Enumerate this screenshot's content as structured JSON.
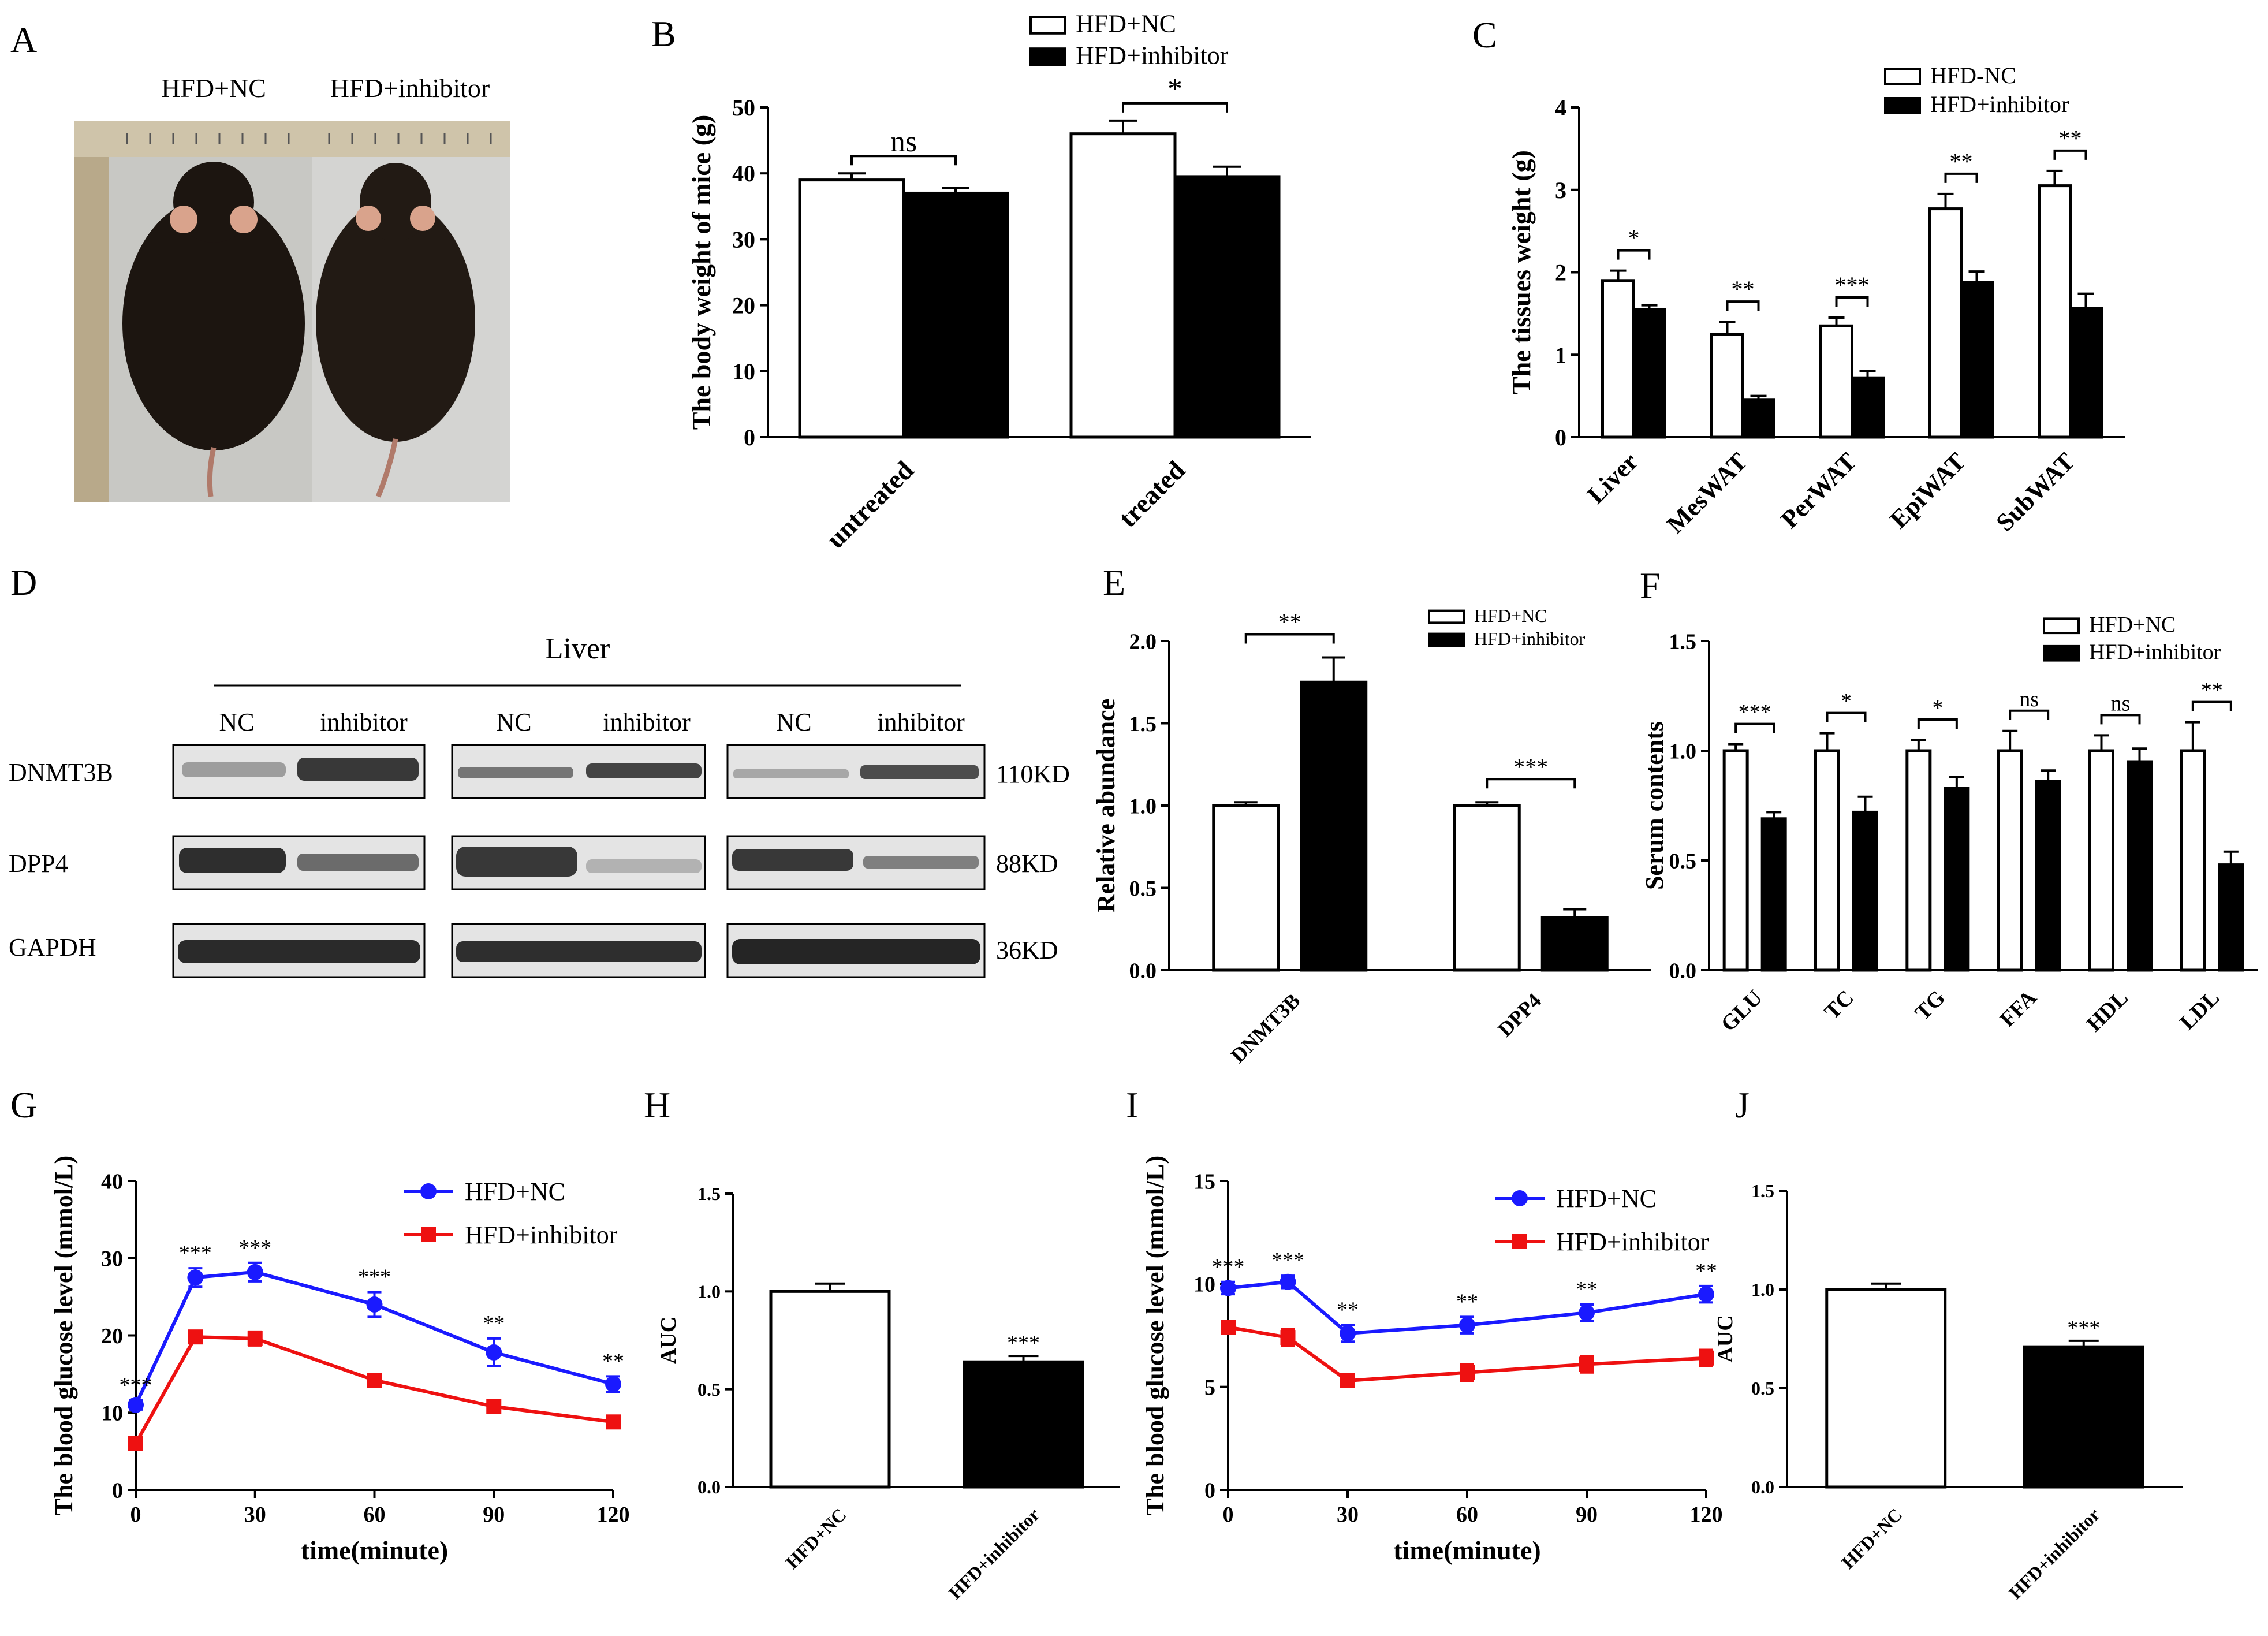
{
  "panel_letters": {
    "A": "A",
    "B": "B",
    "C": "C",
    "D": "D",
    "E": "E",
    "F": "F",
    "G": "G",
    "H": "H",
    "I": "I",
    "J": "J"
  },
  "photo": {
    "label_nc": "HFD+NC",
    "label_inhibitor": "HFD+inhibitor"
  },
  "western": {
    "title": "Liver",
    "lanes": [
      "NC",
      "inhibitor",
      "NC",
      "inhibitor",
      "NC",
      "inhibitor"
    ],
    "rows": [
      {
        "name": "DNMT3B",
        "kd": "110KD"
      },
      {
        "name": "DPP4",
        "kd": "88KD"
      },
      {
        "name": "GAPDH",
        "kd": "36KD"
      }
    ]
  },
  "chart_data": [
    {
      "panel": "B",
      "type": "bar",
      "categories": [
        "untreated",
        "treated"
      ],
      "series": [
        {
          "name": "HFD+NC",
          "values": [
            39,
            46
          ],
          "errors": [
            1,
            2
          ]
        },
        {
          "name": "HFD+inhibitor",
          "values": [
            37,
            39.5
          ],
          "errors": [
            0.8,
            1.5
          ]
        }
      ],
      "significance": [
        "ns",
        "*"
      ],
      "ylabel": "The body weight of mice (g)",
      "ylim": [
        0,
        50
      ],
      "yticks": [
        0,
        10,
        20,
        30,
        40,
        50
      ],
      "tick_labels": [
        "0",
        "10",
        "20",
        "30",
        "40",
        "50"
      ],
      "legend": [
        "HFD+NC",
        "HFD+inhibitor"
      ]
    },
    {
      "panel": "C",
      "type": "bar",
      "categories": [
        "Liver",
        "MesWAT",
        "PerWAT",
        "EpiWAT",
        "SubWAT"
      ],
      "series": [
        {
          "name": "HFD-NC",
          "values": [
            1.9,
            1.25,
            1.35,
            2.77,
            3.05
          ],
          "errors": [
            0.12,
            0.15,
            0.1,
            0.18,
            0.18
          ]
        },
        {
          "name": "HFD+inhibitor",
          "values": [
            1.55,
            0.45,
            0.72,
            1.88,
            1.56
          ],
          "errors": [
            0.05,
            0.05,
            0.08,
            0.13,
            0.18
          ]
        }
      ],
      "significance": [
        "*",
        "**",
        "***",
        "**",
        "**"
      ],
      "ylabel": "The tissues weight (g)",
      "ylim": [
        0,
        4
      ],
      "yticks": [
        0,
        1,
        2,
        3,
        4
      ],
      "tick_labels": [
        "0",
        "1",
        "2",
        "3",
        "4"
      ],
      "legend": [
        "HFD-NC",
        "HFD+inhibitor"
      ]
    },
    {
      "panel": "E",
      "type": "bar",
      "categories": [
        "DNMT3B",
        "DPP4"
      ],
      "series": [
        {
          "name": "HFD+NC",
          "values": [
            1.0,
            1.0
          ],
          "errors": [
            0.02,
            0.02
          ]
        },
        {
          "name": "HFD+inhibitor",
          "values": [
            1.75,
            0.32
          ],
          "errors": [
            0.15,
            0.05
          ]
        }
      ],
      "significance": [
        "**",
        "***"
      ],
      "ylabel": "Relative abundance",
      "ylim": [
        0,
        2.0
      ],
      "yticks": [
        0,
        0.5,
        1.0,
        1.5,
        2.0
      ],
      "tick_labels": [
        "0.0",
        "0.5",
        "1.0",
        "1.5",
        "2.0"
      ],
      "legend": [
        "HFD+NC",
        "HFD+inhibitor"
      ]
    },
    {
      "panel": "F",
      "type": "bar",
      "categories": [
        "GLU",
        "TC",
        "TG",
        "FFA",
        "HDL",
        "LDL"
      ],
      "series": [
        {
          "name": "HFD+NC",
          "values": [
            1.0,
            1.0,
            1.0,
            1.0,
            1.0,
            1.0
          ],
          "errors": [
            0.03,
            0.08,
            0.05,
            0.09,
            0.07,
            0.13
          ]
        },
        {
          "name": "HFD+inhibitor",
          "values": [
            0.69,
            0.72,
            0.83,
            0.86,
            0.95,
            0.48
          ],
          "errors": [
            0.03,
            0.07,
            0.05,
            0.05,
            0.06,
            0.06
          ]
        }
      ],
      "significance": [
        "***",
        "*",
        "*",
        "ns",
        "ns",
        "**"
      ],
      "ylabel": "Serum contents",
      "ylim": [
        0,
        1.5
      ],
      "yticks": [
        0,
        0.5,
        1.0,
        1.5
      ],
      "tick_labels": [
        "0.0",
        "0.5",
        "1.0",
        "1.5"
      ],
      "legend": [
        "HFD+NC",
        "HFD+inhibitor"
      ]
    },
    {
      "panel": "G",
      "type": "line",
      "x": [
        0,
        15,
        30,
        60,
        90,
        120
      ],
      "series": [
        {
          "name": "HFD+NC",
          "color": "#1a1aff",
          "values": [
            11,
            27.5,
            28.2,
            24,
            17.8,
            13.7
          ],
          "errors": [
            0.6,
            1.2,
            1.2,
            1.6,
            1.8,
            1.0
          ]
        },
        {
          "name": "HFD+inhibitor",
          "color": "#ee1111",
          "values": [
            6,
            19.8,
            19.6,
            14.2,
            10.8,
            8.8
          ],
          "errors": [
            0.4,
            0.5,
            0.9,
            0.7,
            0.5,
            0.5
          ]
        }
      ],
      "significance": [
        "***",
        "***",
        "***",
        "***",
        "**",
        "**"
      ],
      "xlabel": "time(minute)",
      "ylabel": "The blood glucose level (mmol/L)",
      "xlim": [
        0,
        120
      ],
      "ylim": [
        0,
        40
      ],
      "xticks": [
        0,
        30,
        60,
        90,
        120
      ],
      "yticks": [
        0,
        10,
        20,
        30,
        40
      ],
      "xtick_labels": [
        "0",
        "30",
        "60",
        "90",
        "120"
      ],
      "ytick_labels": [
        "0",
        "10",
        "20",
        "30",
        "40"
      ],
      "legend": [
        "HFD+NC",
        "HFD+inhibitor"
      ]
    },
    {
      "panel": "H",
      "type": "bar",
      "categories": [
        "HFD+NC",
        "HFD+inhibitor"
      ],
      "values": [
        1.0,
        0.64
      ],
      "errors": [
        0.04,
        0.03
      ],
      "significance": [
        "",
        "***"
      ],
      "ylabel": "AUC",
      "ylim": [
        0,
        1.5
      ],
      "yticks": [
        0,
        0.5,
        1.0,
        1.5
      ],
      "tick_labels": [
        "0.0",
        "0.5",
        "1.0",
        "1.5"
      ]
    },
    {
      "panel": "I",
      "type": "line",
      "x": [
        0,
        15,
        30,
        60,
        90,
        120
      ],
      "series": [
        {
          "name": "HFD+NC",
          "color": "#1a1aff",
          "values": [
            9.8,
            10.1,
            7.6,
            8.0,
            8.6,
            9.5
          ],
          "errors": [
            0.3,
            0.3,
            0.4,
            0.4,
            0.4,
            0.4
          ]
        },
        {
          "name": "HFD+inhibitor",
          "color": "#ee1111",
          "values": [
            7.9,
            7.4,
            5.3,
            5.7,
            6.1,
            6.4
          ],
          "errors": [
            0.2,
            0.4,
            0.2,
            0.4,
            0.4,
            0.4
          ]
        }
      ],
      "significance": [
        "***",
        "***",
        "**",
        "**",
        "**",
        "**"
      ],
      "xlabel": "time(minute)",
      "ylabel": "The blood glucose level (mmol/L)",
      "xlim": [
        0,
        120
      ],
      "ylim": [
        0,
        15
      ],
      "xticks": [
        0,
        30,
        60,
        90,
        120
      ],
      "yticks": [
        0,
        5,
        10,
        15
      ],
      "xtick_labels": [
        "0",
        "30",
        "60",
        "90",
        "120"
      ],
      "ytick_labels": [
        "0",
        "5",
        "10",
        "15"
      ],
      "legend": [
        "HFD+NC",
        "HFD+inhibitor"
      ]
    },
    {
      "panel": "J",
      "type": "bar",
      "categories": [
        "HFD+NC",
        "HFD+inhibitor"
      ],
      "values": [
        1.0,
        0.71
      ],
      "errors": [
        0.03,
        0.03
      ],
      "significance": [
        "",
        "***"
      ],
      "ylabel": "AUC",
      "ylim": [
        0,
        1.5
      ],
      "yticks": [
        0,
        0.5,
        1.0,
        1.5
      ],
      "tick_labels": [
        "0.0",
        "0.5",
        "1.0",
        "1.5"
      ]
    }
  ]
}
